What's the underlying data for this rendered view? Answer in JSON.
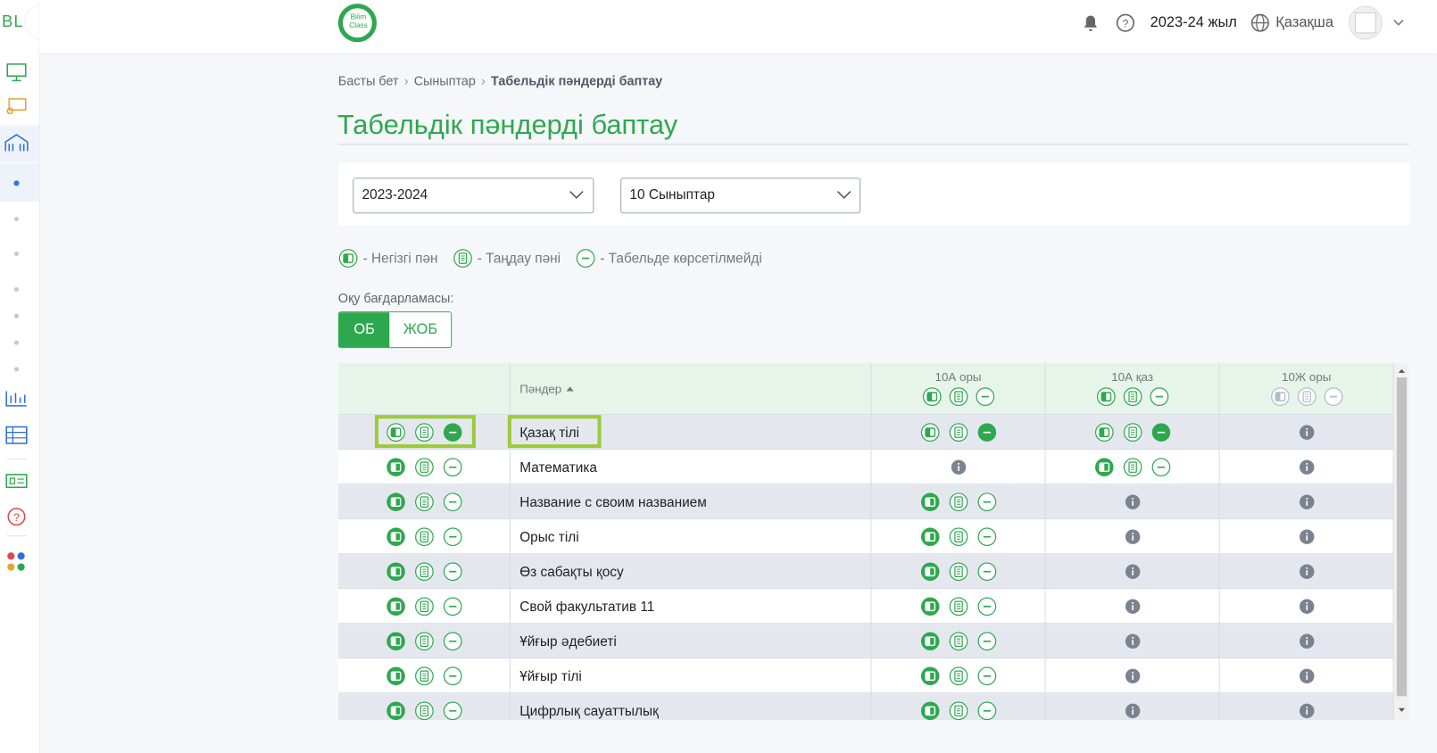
{
  "sidebar": {
    "logo": "BL"
  },
  "header": {
    "brand": [
      "Bilim",
      "Class"
    ],
    "year": "2023-24 жыл",
    "language": "Қазақша"
  },
  "breadcrumb": [
    "Басты бет",
    "Сыныптар",
    "Табельдік пәндерді баптау"
  ],
  "title": "Табельдік пәндерді баптау",
  "filters": {
    "year": "2023-2024",
    "grade": "10 Сыныптар"
  },
  "legend": [
    "- Негізгі пән",
    "- Таңдау пәні",
    "- Табельде көрсетілмейді"
  ],
  "program": {
    "label": "Оқу бағдарламасы:",
    "options": [
      "ОБ",
      "ЖОБ"
    ],
    "selected": 0
  },
  "table": {
    "subjects_header": "Пәндер",
    "columns": [
      {
        "name": "10А оры",
        "enabled": true
      },
      {
        "name": "10А қаз",
        "enabled": true
      },
      {
        "name": "10Ж оры",
        "enabled": false
      }
    ],
    "rows": [
      {
        "subject": "Қазақ тілі",
        "all": "hidden",
        "cells": [
          "hidden",
          "hidden",
          "none"
        ]
      },
      {
        "subject": "Математика",
        "all": "main",
        "cells": [
          "none",
          "main",
          "none"
        ]
      },
      {
        "subject": "Название с своим названием",
        "all": "main",
        "cells": [
          "main",
          "none",
          "none"
        ]
      },
      {
        "subject": "Орыс тілі",
        "all": "main",
        "cells": [
          "main",
          "none",
          "none"
        ]
      },
      {
        "subject": "Өз сабақты қосу",
        "all": "main",
        "cells": [
          "main",
          "none",
          "none"
        ]
      },
      {
        "subject": "Свой факультатив 11",
        "all": "main",
        "cells": [
          "main",
          "none",
          "none"
        ]
      },
      {
        "subject": "Ұйғыр әдебиеті",
        "all": "main",
        "cells": [
          "main",
          "none",
          "none"
        ]
      },
      {
        "subject": "Ұйғыр тілі",
        "all": "main",
        "cells": [
          "main",
          "none",
          "none"
        ]
      },
      {
        "subject": "Цифрлық сауаттылық",
        "all": "main",
        "cells": [
          "main",
          "none",
          "none"
        ]
      }
    ]
  }
}
